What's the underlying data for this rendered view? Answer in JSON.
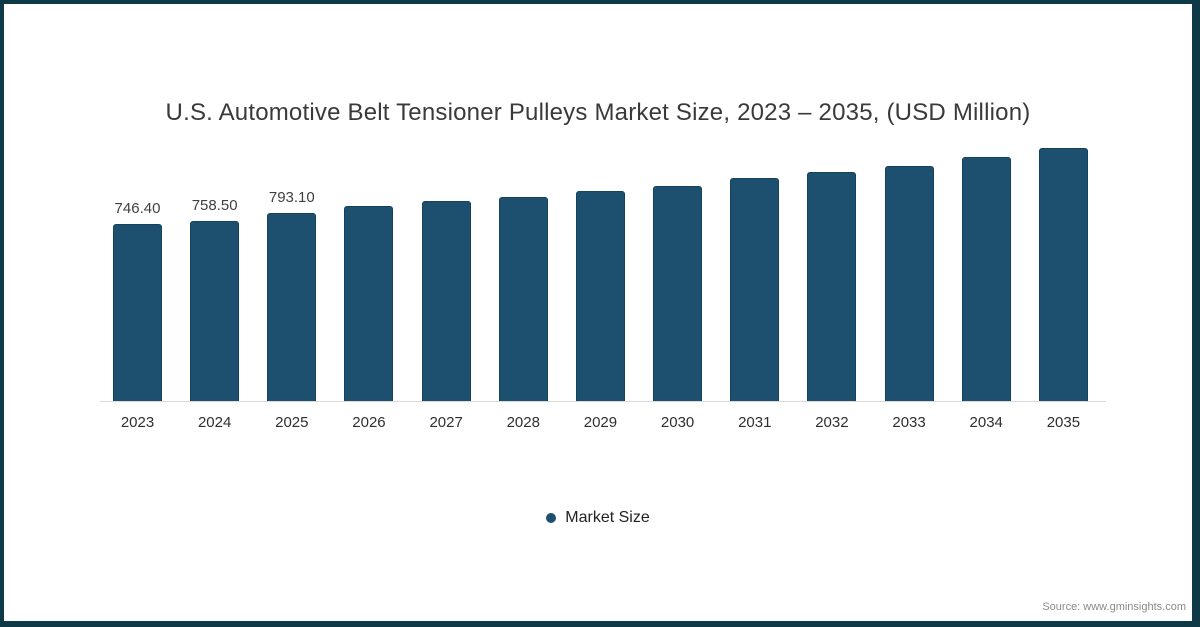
{
  "page": {
    "background": "#ffffff",
    "border_color": "#0e3947"
  },
  "chart_data": {
    "type": "bar",
    "title": "U.S. Automotive Belt Tensioner Pulleys Market Size, 2023 – 2035, (USD Million)",
    "xlabel": "",
    "ylabel": "",
    "categories": [
      "2023",
      "2024",
      "2025",
      "2026",
      "2027",
      "2028",
      "2029",
      "2030",
      "2031",
      "2032",
      "2033",
      "2034",
      "2035"
    ],
    "values": [
      746.4,
      758.5,
      793.1,
      823,
      844,
      862,
      884,
      908,
      940,
      964,
      992,
      1027,
      1066
    ],
    "data_labels": [
      "746.40",
      "758.50",
      "793.10",
      "",
      "",
      "",
      "",
      "",
      "",
      "",
      "",
      "",
      ""
    ],
    "ylim": [
      0,
      1100
    ],
    "grid": false,
    "bar_color": "#1d4f6e",
    "axis_line_color": "#d9d9d9",
    "legend": {
      "label": "Market Size",
      "marker": "circle-icon",
      "marker_color": "#1d4f6e",
      "position": "bottom-center"
    }
  },
  "footer": {
    "source": "Source: www.gminsights.com"
  }
}
